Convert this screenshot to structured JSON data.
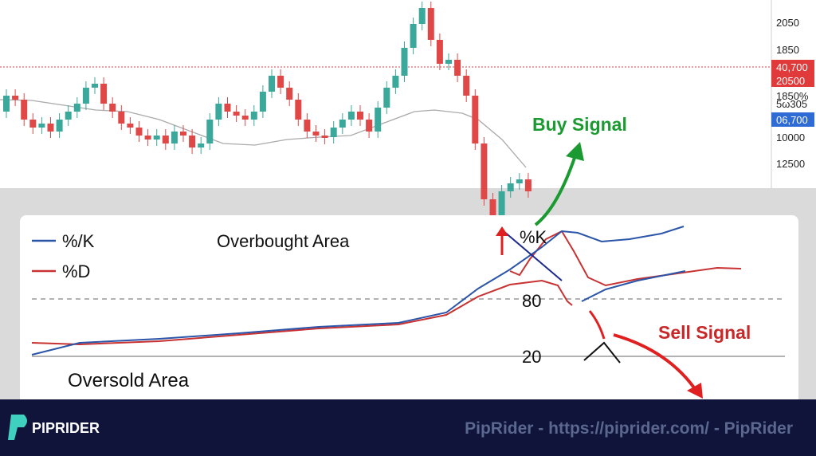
{
  "price_axis": {
    "labels": [
      "2050",
      "1850",
      "40,700",
      "20500",
      "1850%",
      "5ω305",
      "06,700",
      "10000",
      "12500"
    ]
  },
  "oscillator": {
    "legend": [
      "%/K",
      "%D"
    ],
    "overbought_label": "Overbought Area",
    "oversold_label": "Oversold Area",
    "k_label": "%K",
    "level_high": "80",
    "level_low": "20"
  },
  "annotations": {
    "buy": "Buy Signal",
    "sell": "Sell Signal"
  },
  "footer": {
    "brand": "PIPRIDER",
    "text": "PipRider - https://piprider.com/ - PipRider"
  }
}
